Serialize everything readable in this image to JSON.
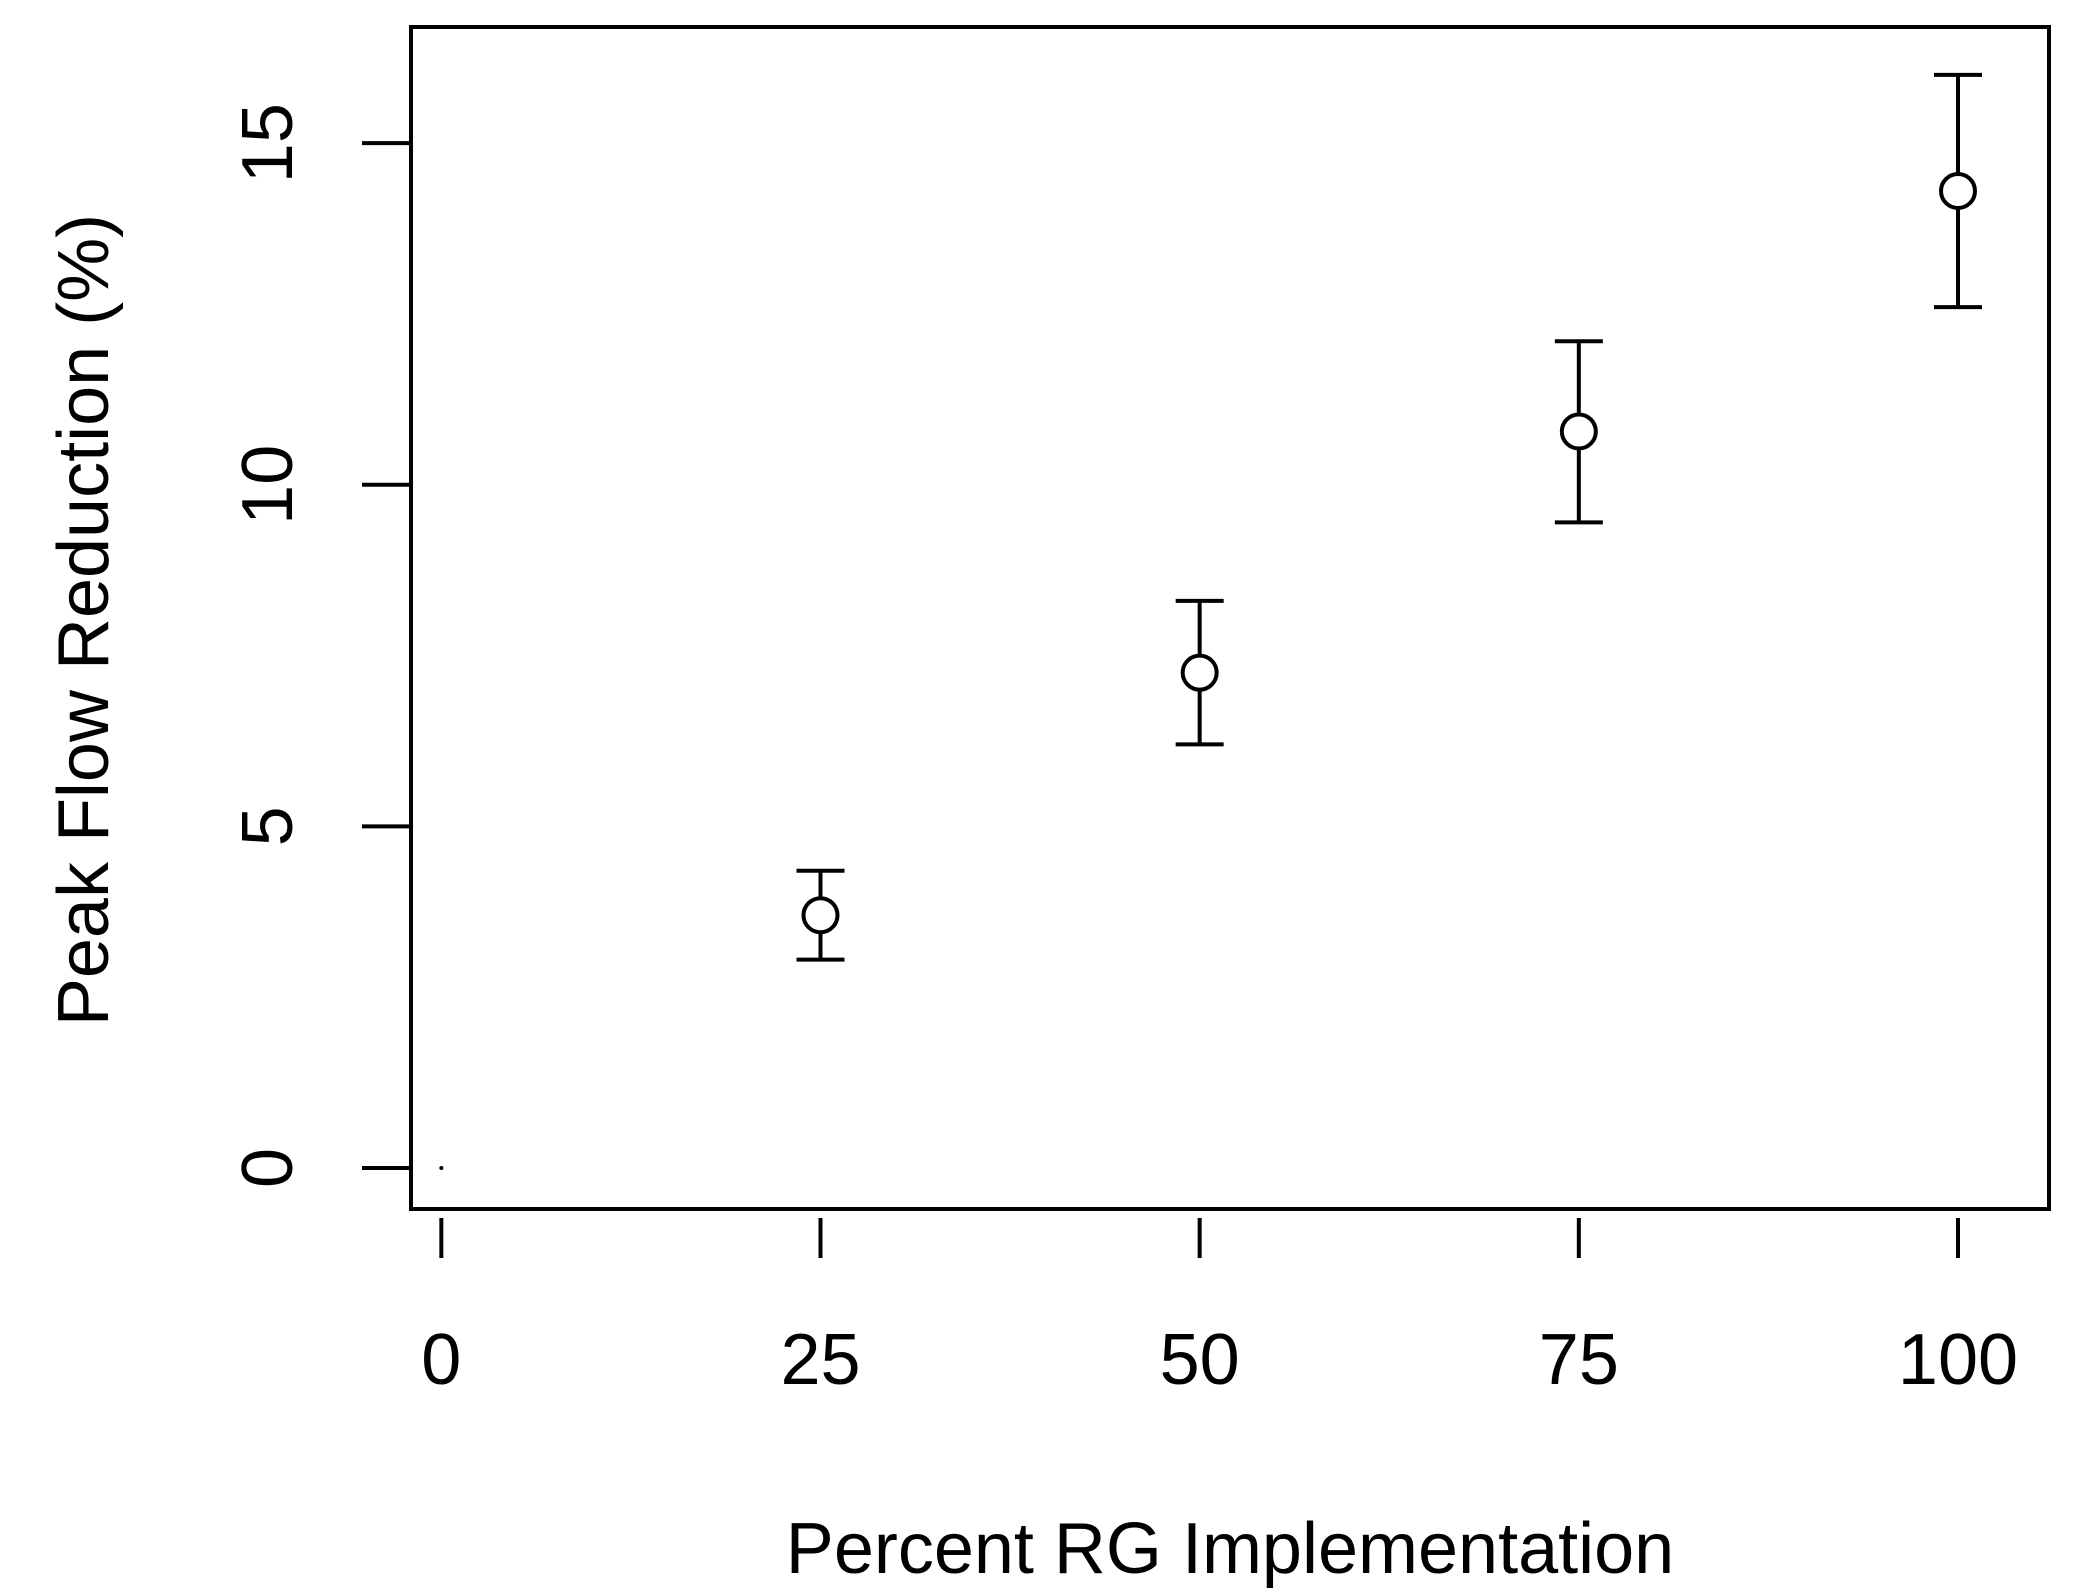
{
  "chart_data": {
    "type": "scatter",
    "title": "",
    "xlabel": "Percent RG Implementation",
    "ylabel": "Peak Flow Reduction (%)",
    "xlim": [
      -2,
      106
    ],
    "ylim": [
      -0.6,
      16.7
    ],
    "xticks": [
      0,
      25,
      50,
      75,
      100
    ],
    "yticks": [
      0,
      5,
      10,
      15
    ],
    "grid": false,
    "legend": "none",
    "series": [
      {
        "x": [
          0,
          25,
          50,
          75,
          100
        ],
        "y": [
          0,
          3.7,
          7.25,
          10.78,
          14.3
        ],
        "err_low": [
          0,
          3.05,
          6.2,
          9.45,
          12.6
        ],
        "err_high": [
          0,
          4.35,
          8.3,
          12.1,
          16.0
        ]
      }
    ],
    "colors": {
      "marks": "#000000",
      "background": "#ffffff"
    }
  }
}
